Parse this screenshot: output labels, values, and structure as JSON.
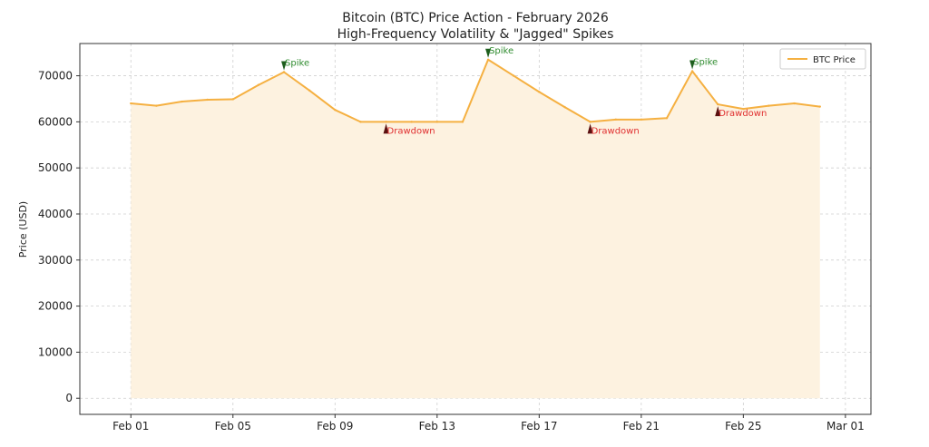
{
  "chart_data": {
    "type": "line",
    "title": "Bitcoin (BTC) Price Action - February 2026",
    "subtitle": "High-Frequency Volatility & \"Jagged\" Spikes",
    "xlabel": "",
    "ylabel": "Price (USD)",
    "x": [
      "2026-02-01",
      "2026-02-02",
      "2026-02-03",
      "2026-02-04",
      "2026-02-05",
      "2026-02-06",
      "2026-02-07",
      "2026-02-08",
      "2026-02-09",
      "2026-02-10",
      "2026-02-11",
      "2026-02-12",
      "2026-02-13",
      "2026-02-14",
      "2026-02-15",
      "2026-02-16",
      "2026-02-17",
      "2026-02-18",
      "2026-02-19",
      "2026-02-20",
      "2026-02-21",
      "2026-02-22",
      "2026-02-23",
      "2026-02-24",
      "2026-02-25",
      "2026-02-26",
      "2026-02-27",
      "2026-02-28"
    ],
    "series": [
      {
        "name": "BTC Price",
        "color": "#f5b041",
        "values": [
          64000,
          63500,
          64400,
          64800,
          64900,
          68000,
          70800,
          66800,
          62600,
          60000,
          60000,
          60000,
          60000,
          60000,
          73500,
          70000,
          66500,
          63200,
          60000,
          60500,
          60500,
          60800,
          71000,
          63800,
          62800,
          63500,
          64000,
          63300
        ]
      }
    ],
    "x_ticks": [
      {
        "date": "2026-02-01",
        "label": "Feb 01"
      },
      {
        "date": "2026-02-05",
        "label": "Feb 05"
      },
      {
        "date": "2026-02-09",
        "label": "Feb 09"
      },
      {
        "date": "2026-02-13",
        "label": "Feb 13"
      },
      {
        "date": "2026-02-17",
        "label": "Feb 17"
      },
      {
        "date": "2026-02-21",
        "label": "Feb 21"
      },
      {
        "date": "2026-02-25",
        "label": "Feb 25"
      },
      {
        "date": "2026-03-01",
        "label": "Mar 01"
      }
    ],
    "y_ticks": [
      0,
      10000,
      20000,
      30000,
      40000,
      50000,
      60000,
      70000
    ],
    "xlim": [
      "2026-01-30",
      "2026-03-02"
    ],
    "ylim": [
      -3500,
      77000
    ],
    "grid": true,
    "legend_position": "top-right",
    "fill_under": true,
    "fill_color": "#fdf2e0",
    "annotations": [
      {
        "date": "2026-02-07",
        "value": 70800,
        "text": "Spike",
        "kind": "spike",
        "color": "#2e8b2e"
      },
      {
        "date": "2026-02-15",
        "value": 73500,
        "text": "Spike",
        "kind": "spike",
        "color": "#2e8b2e"
      },
      {
        "date": "2026-02-23",
        "value": 71000,
        "text": "Spike",
        "kind": "spike",
        "color": "#2e8b2e"
      },
      {
        "date": "2026-02-11",
        "value": 60000,
        "text": "Drawdown",
        "kind": "drawdown",
        "color": "#e03030"
      },
      {
        "date": "2026-02-19",
        "value": 60000,
        "text": "Drawdown",
        "kind": "drawdown",
        "color": "#e03030"
      },
      {
        "date": "2026-02-24",
        "value": 63800,
        "text": "Drawdown",
        "kind": "drawdown",
        "color": "#e03030"
      }
    ]
  }
}
